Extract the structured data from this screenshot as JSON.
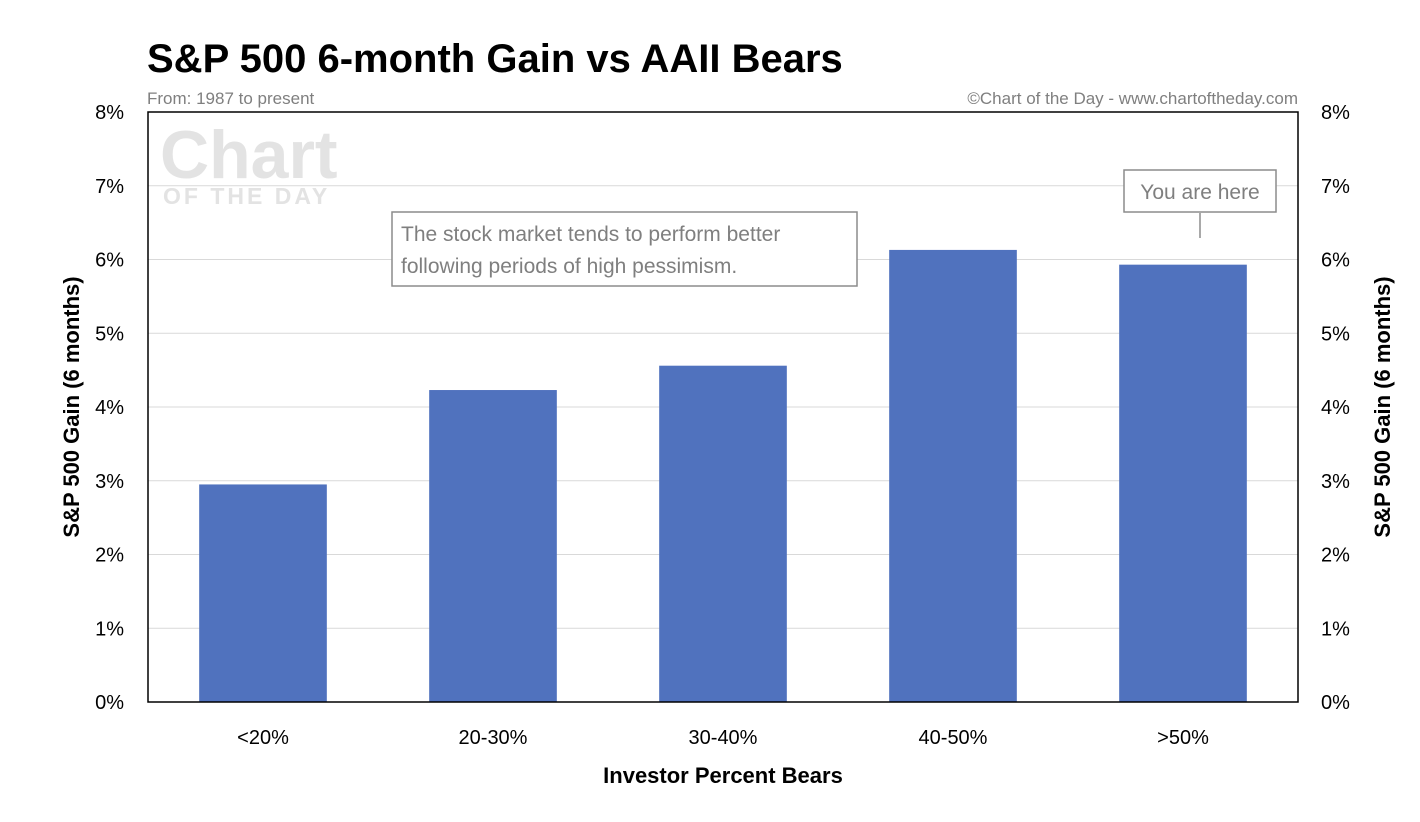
{
  "chart_data": {
    "type": "bar",
    "title": "S&P 500 6-month Gain vs AAII Bears",
    "subtitle": "From: 1987 to present",
    "credit": "©Chart of the Day - www.chartoftheday.com",
    "watermark": {
      "line1": "Chart",
      "line2": "OF THE DAY"
    },
    "categories": [
      "<20%",
      "20-30%",
      "30-40%",
      "40-50%",
      ">50%"
    ],
    "values": [
      2.95,
      4.23,
      4.56,
      6.13,
      5.93
    ],
    "xlabel": "Investor Percent Bears",
    "ylabel": "S&P 500 Gain (6 months)",
    "ylabel_right": "S&P 500 Gain (6 months)",
    "ylim": [
      0,
      8
    ],
    "yticks": [
      "0%",
      "1%",
      "2%",
      "3%",
      "4%",
      "5%",
      "6%",
      "7%",
      "8%"
    ],
    "grid": true,
    "bar_color": "#5072BE",
    "annotations": [
      {
        "text_lines": [
          "The stock market tends to perform better",
          "following periods of high pessimism."
        ]
      },
      {
        "text_lines": [
          "You are here"
        ],
        "category": ">50%"
      }
    ]
  }
}
